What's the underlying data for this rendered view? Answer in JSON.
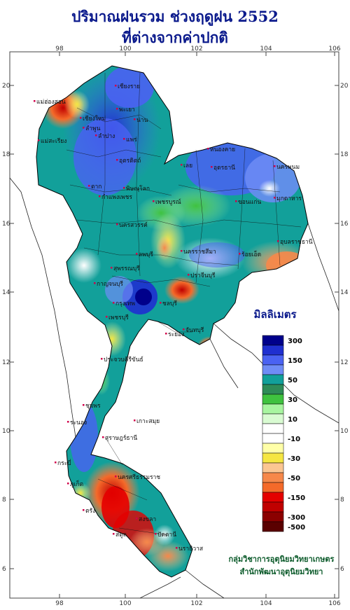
{
  "title": {
    "line1": "ปริมาณฝนรวม ช่วงฤดูฝน 2552",
    "line2": "ที่ต่างจากค่าปกติ"
  },
  "axes": {
    "longitude_ticks": [
      "98",
      "100",
      "102",
      "104",
      "106"
    ],
    "latitude_ticks": [
      "20",
      "18",
      "16",
      "14",
      "12",
      "10",
      "8",
      "6"
    ]
  },
  "legend": {
    "title": "มิลลิเมตร",
    "unit": "mm",
    "bins": [
      {
        "label": "300",
        "color": "#00008b"
      },
      {
        "label": "",
        "color": "#1f2fd0"
      },
      {
        "label": "150",
        "color": "#4a62f2"
      },
      {
        "label": "",
        "color": "#6f8cf6"
      },
      {
        "label": "50",
        "color": "#12a09a"
      },
      {
        "label": "",
        "color": "#2e8b57"
      },
      {
        "label": "30",
        "color": "#3fc23f"
      },
      {
        "label": "",
        "color": "#a8f5a0"
      },
      {
        "label": "10",
        "color": "#d9fbd2"
      },
      {
        "label": "",
        "color": "#ffffff"
      },
      {
        "label": "-10",
        "color": "#ffffff"
      },
      {
        "label": "",
        "color": "#ffffa8"
      },
      {
        "label": "-30",
        "color": "#f5e642"
      },
      {
        "label": "",
        "color": "#fbc692"
      },
      {
        "label": "-50",
        "color": "#f6884a"
      },
      {
        "label": "",
        "color": "#f46a2a"
      },
      {
        "label": "-150",
        "color": "#e40000"
      },
      {
        "label": "",
        "color": "#c00000"
      },
      {
        "label": "-300",
        "color": "#8b0000"
      },
      {
        "label": "-500",
        "color": "#5a0000"
      }
    ]
  },
  "places": [
    "แม่ฮ่องสอน",
    "เชียงราย",
    "เชียงใหม่",
    "ลำพูน",
    "น่าน",
    "พะเยา",
    "ลำปาง",
    "แพร่",
    "แม่สะเรียง",
    "อุตรดิตถ์",
    "ตาก",
    "พิษณุโลก",
    "หนองคาย",
    "อุดรธานี",
    "นครพนม",
    "เลย",
    "มุกดาหาร",
    "ขอนแก่น",
    "กำแพงเพชร",
    "เพชรบูรณ์",
    "นครสวรรค์",
    "อุบลราชธานี",
    "นครราชสีมา",
    "ลพบุรี",
    "ร้อยเอ็ด",
    "สุพรรณบุรี",
    "กาญจนบุรี",
    "ปราจีนบุรี",
    "กรุงเทพ",
    "ชลบุรี",
    "ระยอง",
    "จันทบุรี",
    "เพชรบุรี",
    "ประจวบคีรีขันธ์",
    "ชุมพร",
    "ระนอง",
    "สุราษฎร์ธานี",
    "ภูเก็ต",
    "กระบี่",
    "นครศรีธรรมราช",
    "ตรัง",
    "สงขลา",
    "สตูล",
    "ปัตตานี",
    "นราธิวาส",
    "เกาะสมุย"
  ],
  "credit": {
    "line1": "กลุ่มวิชาการอุตุนิยมวิทยาเกษตร",
    "line2": "สำนักพัฒนาอุตุนิยมวิทยา"
  }
}
